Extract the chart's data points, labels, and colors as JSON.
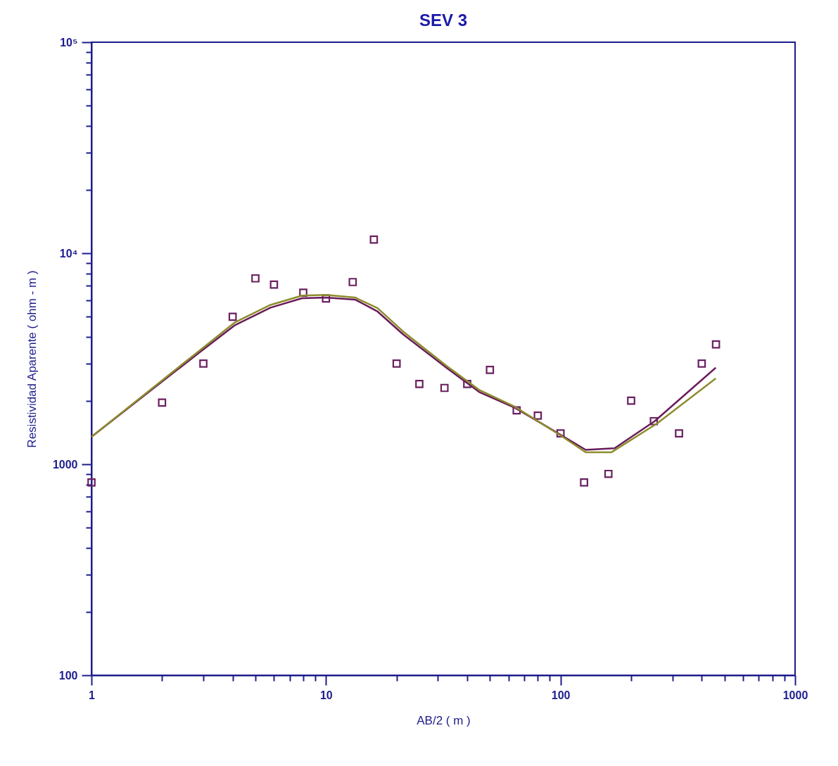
{
  "chart_data": {
    "type": "scatter",
    "title": "SEV 3",
    "xlabel": "AB/2   ( m )",
    "ylabel": "Resistividad Aparente  ( ohm - m )",
    "log": "xy",
    "grid": false,
    "legend": false,
    "xlim": [
      1,
      1000
    ],
    "ylim": [
      100,
      100000
    ],
    "xticks": [
      1,
      {
        "value": 2,
        "label": null
      },
      {
        "value": 3,
        "label": null
      },
      {
        "value": 4,
        "label": null
      },
      {
        "value": 5,
        "label": null
      },
      {
        "value": 6,
        "label": null
      },
      {
        "value": 7,
        "label": null
      },
      {
        "value": 8,
        "label": null
      },
      {
        "value": 9,
        "label": null
      },
      10,
      {
        "value": 20,
        "label": null
      },
      {
        "value": 30,
        "label": null
      },
      {
        "value": 40,
        "label": null
      },
      {
        "value": 50,
        "label": null
      },
      {
        "value": 60,
        "label": null
      },
      {
        "value": 70,
        "label": null
      },
      {
        "value": 80,
        "label": null
      },
      {
        "value": 90,
        "label": null
      },
      100,
      {
        "value": 200,
        "label": null
      },
      {
        "value": 300,
        "label": null
      },
      {
        "value": 400,
        "label": null
      },
      {
        "value": 500,
        "label": null
      },
      {
        "value": 600,
        "label": null
      },
      {
        "value": 700,
        "label": null
      },
      {
        "value": 800,
        "label": null
      },
      {
        "value": 900,
        "label": null
      },
      1000
    ],
    "yticks": [
      100,
      {
        "value": 200,
        "label": null
      },
      {
        "value": 300,
        "label": null
      },
      {
        "value": 400,
        "label": null
      },
      {
        "value": 500,
        "label": null
      },
      {
        "value": 600,
        "label": null
      },
      {
        "value": 700,
        "label": null
      },
      {
        "value": 800,
        "label": null
      },
      {
        "value": 900,
        "label": null
      },
      1000,
      {
        "value": 2000,
        "label": null
      },
      {
        "value": 3000,
        "label": null
      },
      {
        "value": 4000,
        "label": null
      },
      {
        "value": 5000,
        "label": null
      },
      {
        "value": 6000,
        "label": null
      },
      {
        "value": 7000,
        "label": null
      },
      {
        "value": 8000,
        "label": null
      },
      {
        "value": 9000,
        "label": null
      },
      {
        "value": 10000,
        "label": "10⁴"
      },
      {
        "value": 20000,
        "label": null
      },
      {
        "value": 30000,
        "label": null
      },
      {
        "value": 40000,
        "label": null
      },
      {
        "value": 50000,
        "label": null
      },
      {
        "value": 60000,
        "label": null
      },
      {
        "value": 70000,
        "label": null
      },
      {
        "value": 80000,
        "label": null
      },
      {
        "value": 90000,
        "label": null
      },
      {
        "value": 100000,
        "label": "10⁵"
      }
    ],
    "series": [
      {
        "marker": "square",
        "color": "#6b2060",
        "x": [
          1,
          2,
          3,
          4,
          5,
          6,
          8,
          10,
          13,
          16,
          20,
          25,
          32,
          40,
          50,
          65,
          80,
          100,
          126,
          160,
          200,
          250,
          320,
          400,
          460
        ],
        "values": [
          820,
          1960,
          3000,
          5000,
          7600,
          7100,
          6500,
          6100,
          7300,
          11600,
          3000,
          2400,
          2300,
          2400,
          2800,
          1800,
          1700,
          1400,
          820,
          900,
          2000,
          1600,
          1400,
          3000,
          3700
        ]
      },
      {
        "type": "line",
        "marker": "none",
        "color": "#6a1b5a",
        "x": [
          1,
          2.9,
          4.1,
          5.8,
          7.9,
          10,
          13.3,
          16.6,
          21.3,
          32.6,
          45,
          64,
          100,
          128,
          170,
          252,
          459
        ],
        "values": [
          1350,
          3400,
          4570,
          5520,
          6120,
          6170,
          6030,
          5290,
          4130,
          2870,
          2200,
          1850,
          1380,
          1170,
          1190,
          1600,
          2870
        ]
      },
      {
        "type": "line",
        "marker": "none",
        "color": "#8c8c2c",
        "x": [
          1,
          2.9,
          4.1,
          5.8,
          7.9,
          10,
          13.3,
          16.6,
          21.3,
          32.6,
          45,
          64,
          100,
          128,
          165,
          258,
          459
        ],
        "values": [
          1350,
          3470,
          4710,
          5690,
          6300,
          6350,
          6170,
          5490,
          4260,
          2930,
          2250,
          1870,
          1370,
          1140,
          1140,
          1560,
          2550
        ]
      }
    ]
  }
}
